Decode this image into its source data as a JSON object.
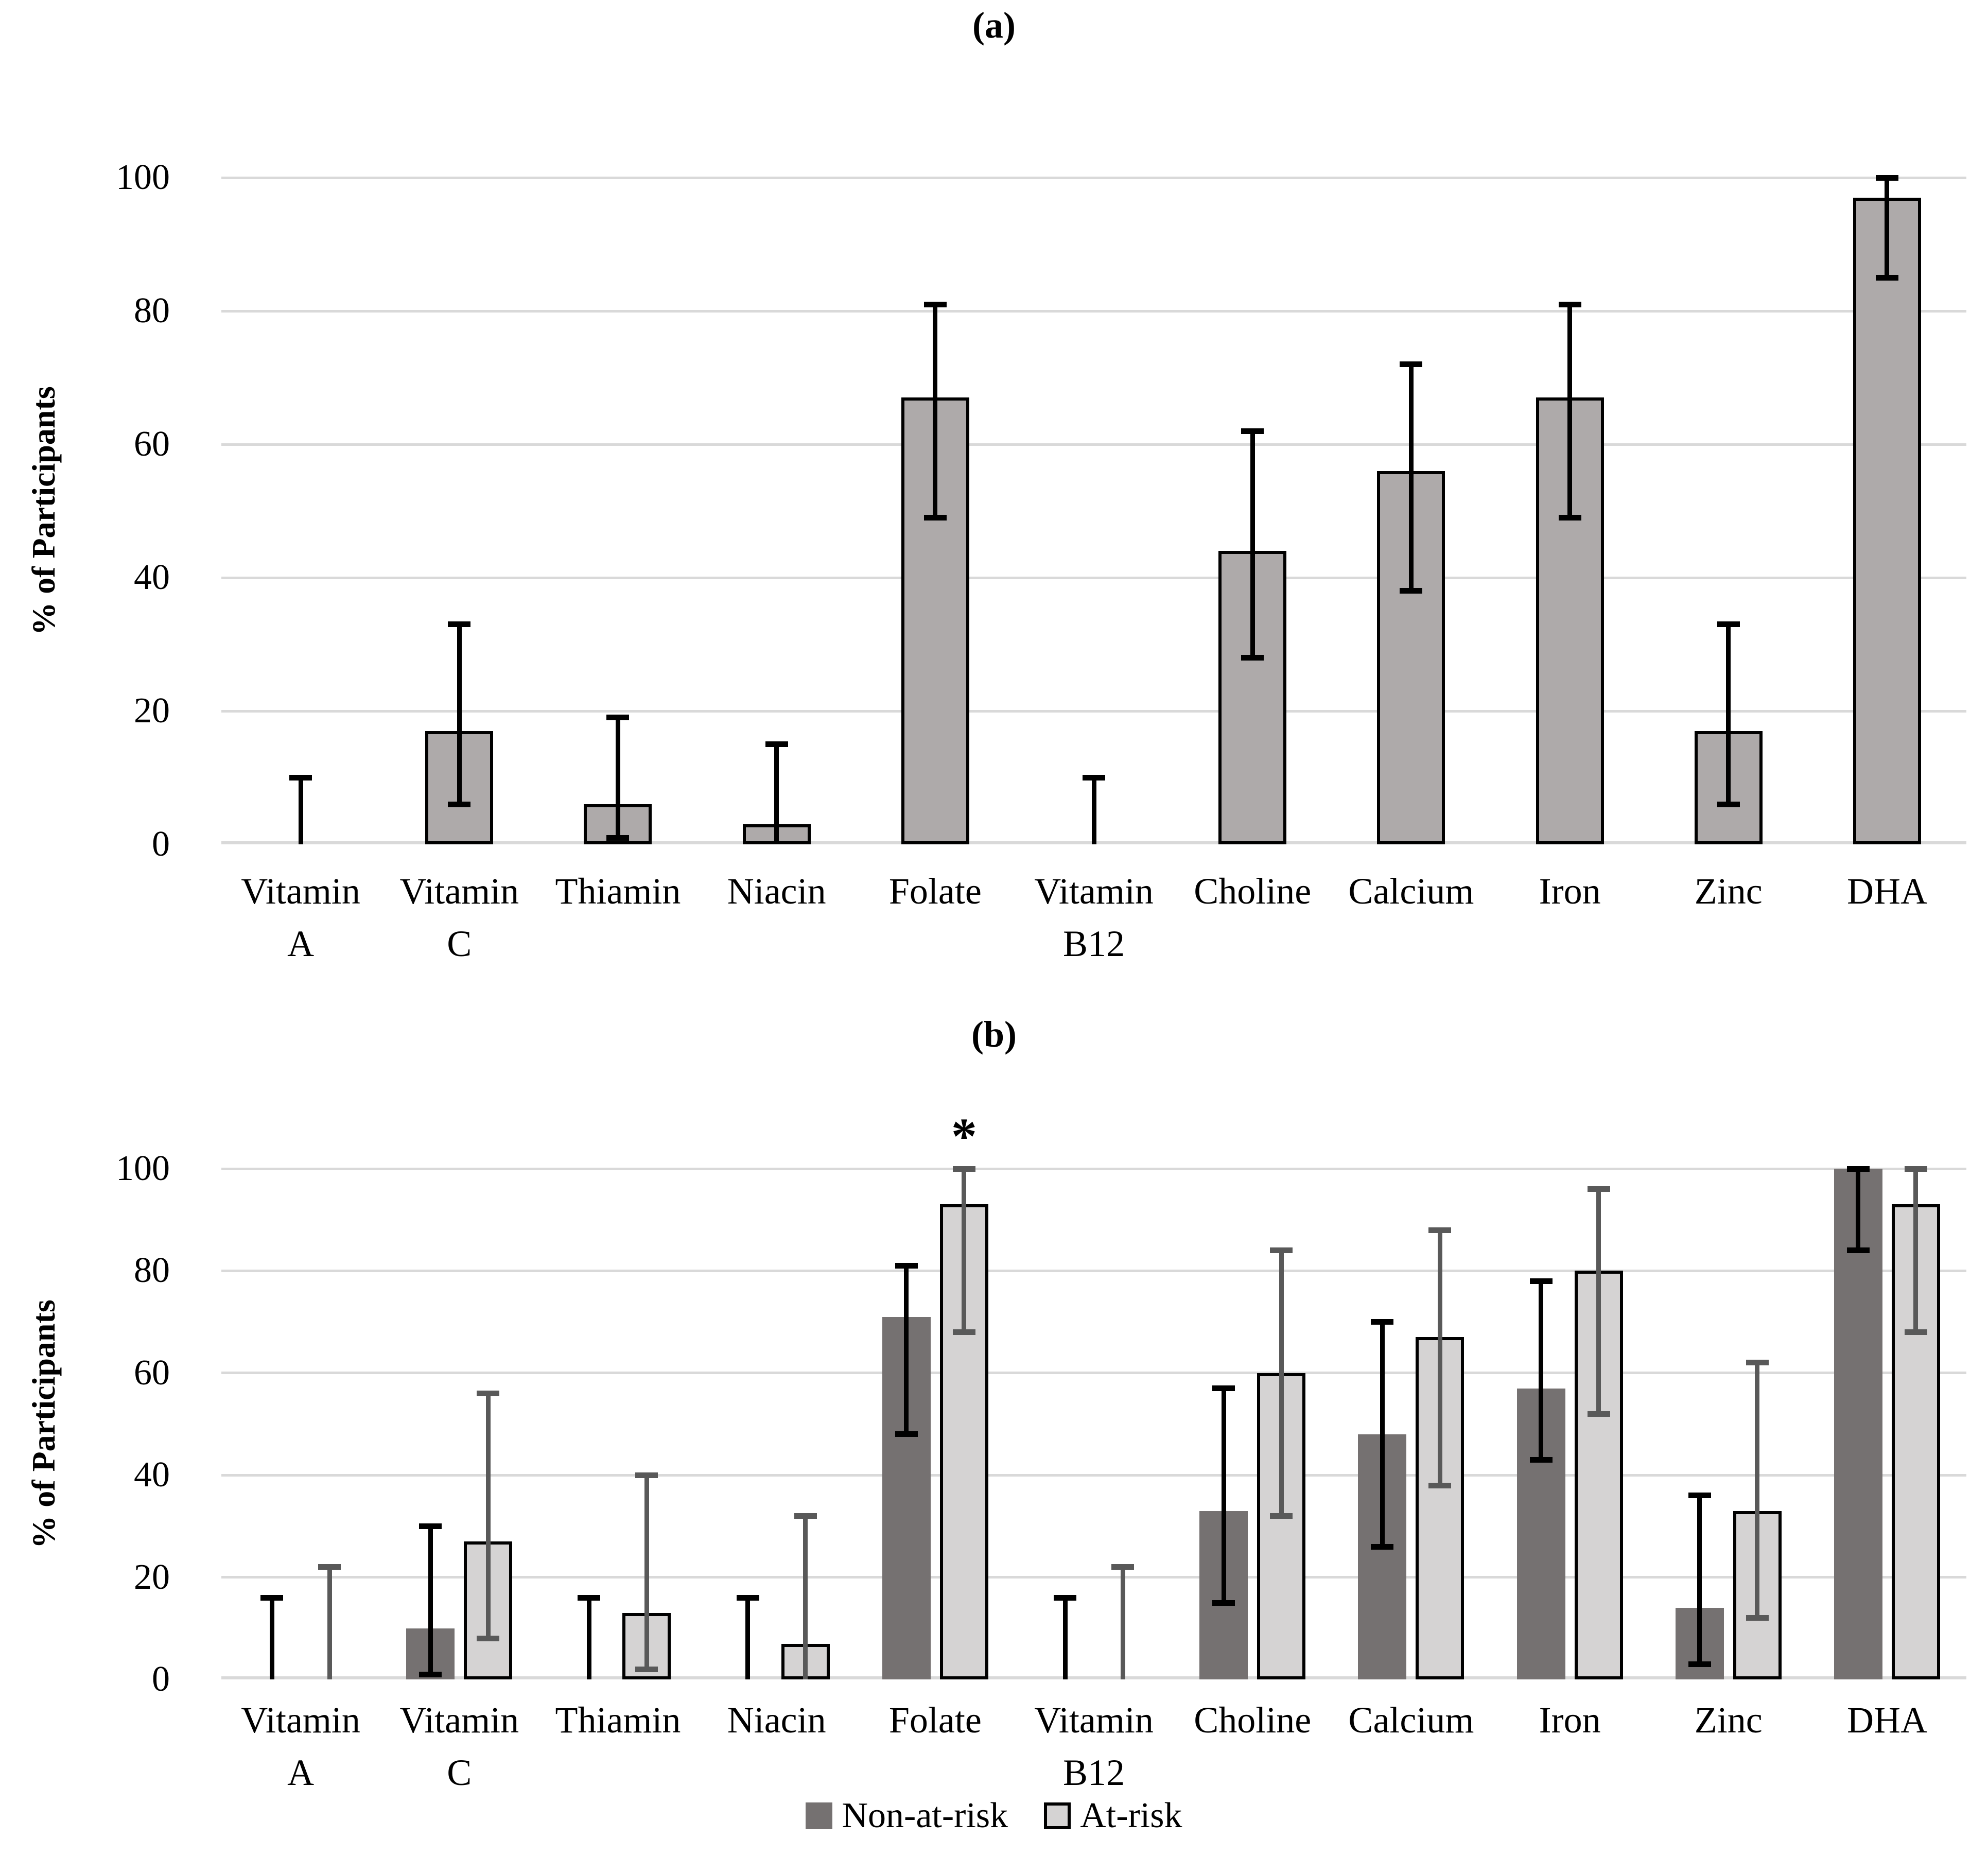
{
  "figure_background": "#ffffff",
  "chart_data": [
    {
      "type": "bar",
      "panel_label": "(a)",
      "title": "(a)",
      "ylabel": "% of Participants",
      "xlabel": "",
      "ylim": [
        0,
        100
      ],
      "yticks": [
        0,
        20,
        40,
        60,
        80,
        100
      ],
      "grid": true,
      "gridline_color": "#d9d9d9",
      "categories": [
        "Vitamin A",
        "Vitamin C",
        "Thiamin",
        "Niacin",
        "Folate",
        "Vitamin B12",
        "Choline",
        "Calcium",
        "Iron",
        "Zinc",
        "DHA"
      ],
      "category_display": [
        [
          "Vitamin",
          "A"
        ],
        [
          "Vitamin",
          "C"
        ],
        [
          "Thiamin"
        ],
        [
          "Niacin"
        ],
        [
          "Folate"
        ],
        [
          "Vitamin",
          "B12"
        ],
        [
          "Choline"
        ],
        [
          "Calcium"
        ],
        [
          "Iron"
        ],
        [
          "Zinc"
        ],
        [
          "DHA"
        ]
      ],
      "values": [
        0,
        17,
        6,
        3,
        67,
        0,
        44,
        56,
        67,
        17,
        97
      ],
      "error_low": [
        0,
        6,
        1,
        0,
        49,
        0,
        28,
        38,
        49,
        6,
        85
      ],
      "error_high": [
        10,
        33,
        19,
        15,
        81,
        10,
        62,
        72,
        81,
        33,
        100
      ],
      "bar_fill": "#aeaaaa",
      "bar_border": "#000000",
      "error_color": "#000000"
    },
    {
      "type": "bar",
      "panel_label": "(b)",
      "title": "(b)",
      "ylabel": "% of Participants",
      "xlabel": "",
      "ylim": [
        0,
        100
      ],
      "yticks": [
        0,
        20,
        40,
        60,
        80,
        100
      ],
      "grid": true,
      "gridline_color": "#d9d9d9",
      "legend_position": "bottom",
      "categories": [
        "Vitamin A",
        "Vitamin C",
        "Thiamin",
        "Niacin",
        "Folate",
        "Vitamin B12",
        "Choline",
        "Calcium",
        "Iron",
        "Zinc",
        "DHA"
      ],
      "category_display": [
        [
          "Vitamin",
          "A"
        ],
        [
          "Vitamin",
          "C"
        ],
        [
          "Thiamin"
        ],
        [
          "Niacin"
        ],
        [
          "Folate"
        ],
        [
          "Vitamin",
          "B12"
        ],
        [
          "Choline"
        ],
        [
          "Calcium"
        ],
        [
          "Iron"
        ],
        [
          "Zinc"
        ],
        [
          "DHA"
        ]
      ],
      "series": [
        {
          "name": "Non-at-risk",
          "color": "#757171",
          "error_color": "#000000",
          "values": [
            0,
            10,
            0,
            0,
            71,
            0,
            33,
            48,
            57,
            14,
            100
          ],
          "error_low": [
            0,
            1,
            0,
            0,
            48,
            0,
            15,
            26,
            43,
            3,
            84
          ],
          "error_high": [
            16,
            30,
            16,
            16,
            81,
            16,
            57,
            70,
            78,
            36,
            100
          ]
        },
        {
          "name": "At-risk",
          "color": "#d5d3d3",
          "border_color": "#000000",
          "error_color": "#595959",
          "values": [
            0,
            27,
            13,
            7,
            93,
            0,
            60,
            67,
            80,
            33,
            93
          ],
          "error_low": [
            0,
            8,
            2,
            0,
            68,
            0,
            32,
            38,
            52,
            12,
            68
          ],
          "error_high": [
            22,
            56,
            40,
            32,
            100,
            22,
            84,
            88,
            96,
            62,
            100
          ]
        }
      ],
      "annotations": [
        {
          "text": "*",
          "category_index": 4,
          "series_index": 1
        }
      ]
    }
  ]
}
